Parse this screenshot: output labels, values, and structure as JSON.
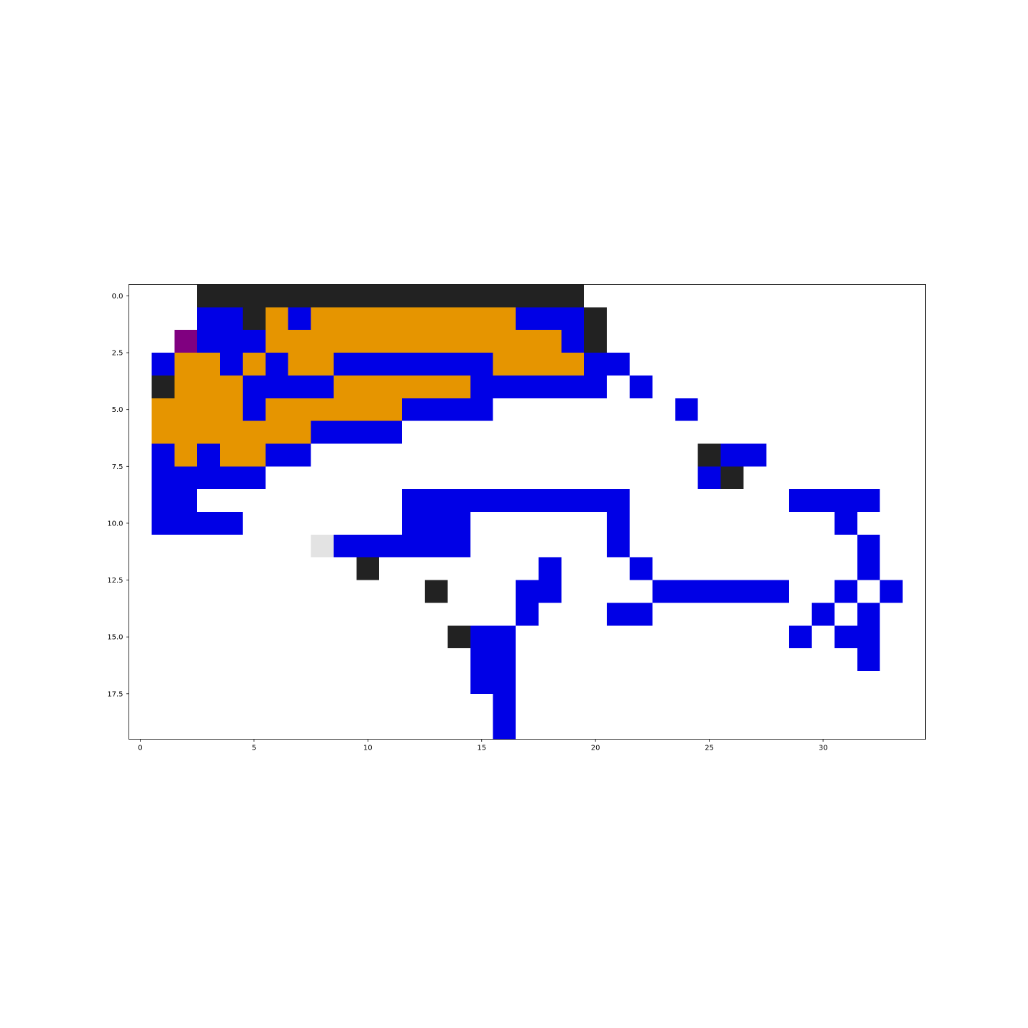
{
  "chart_data": {
    "type": "heatmap",
    "title": "",
    "xlabel": "",
    "ylabel": "",
    "xlim": [
      -0.5,
      34.5
    ],
    "ylim": [
      19.5,
      -0.5
    ],
    "x_ticks": [
      0,
      5,
      10,
      15,
      20,
      25,
      30
    ],
    "x_tick_labels": [
      "0",
      "5",
      "10",
      "15",
      "20",
      "25",
      "30"
    ],
    "y_ticks": [
      0,
      2.5,
      5,
      7.5,
      10,
      12.5,
      15,
      17.5
    ],
    "y_tick_labels": [
      "0.0",
      "2.5",
      "5.0",
      "7.5",
      "10.0",
      "12.5",
      "15.0",
      "17.5"
    ],
    "grid": false,
    "n_rows": 20,
    "n_cols": 35,
    "palette": {
      ".": "#ffffff",
      "K": "#222222",
      "B": "#0000e6",
      "O": "#e69500",
      "P": "#800080",
      "G": "#e3e3e3"
    },
    "rows": [
      "...KKKKKKKKKKKKKKKKK...............",
      "...BBKOBOOOOOOOOOBBBK..............",
      "..PBBBOOOOOOOOOOOOOBK..............",
      ".BOOBOBOOBBBBBBBOOOOBB.............",
      ".KOOOBBBBOOOOOOBBBBBB.B............",
      ".OOOOBOOOOOOBBBB........B..........",
      ".OOOOOOOBBBB.......................",
      ".BOBOOBB.................KBB.......",
      ".BBBBB...................BK........",
      ".BB.........BBBBBBBBBB.......BBBB..",
      ".BBBB.......BBB......B.........B...",
      "........GBBBBBB......B..........B..",
      "..........K.......B...B.........B..",
      ".............K...BB....BBBBBB..B.B.",
      ".................B...BB.......B.B..",
      "..............KBB............B.BB..",
      "...............BB...............B..",
      "...............BB..................",
      "................B..................",
      "................B.................."
    ]
  }
}
